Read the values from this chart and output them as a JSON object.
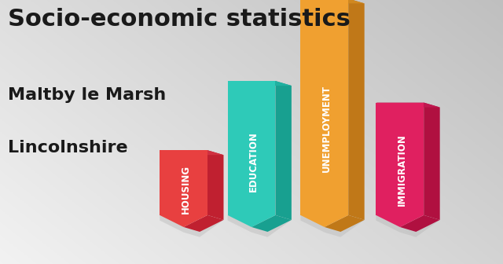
{
  "title": "Socio-economic statistics",
  "subtitle1": "Maltby le Marsh",
  "subtitle2": "Lincolnshire",
  "categories": [
    "HOUSING",
    "EDUCATION",
    "UNEMPLOYMENT",
    "IMMIGRATION"
  ],
  "values": [
    0.3,
    0.62,
    1.0,
    0.52
  ],
  "bar_colors": [
    "#e84040",
    "#2ecab8",
    "#f0a030",
    "#e02060"
  ],
  "bar_right_colors": [
    "#c02030",
    "#18a090",
    "#c07818",
    "#b01040"
  ],
  "bar_bottom_colors": [
    "#d03040",
    "#20b0a0",
    "#d08820",
    "#c01850"
  ],
  "title_fontsize": 22,
  "subtitle_fontsize": 16,
  "label_fontsize": 8.5,
  "text_color": "#1a1a1a",
  "bg_color_tl": "#c0c0c0",
  "bg_color_br": "#f0f0f0"
}
